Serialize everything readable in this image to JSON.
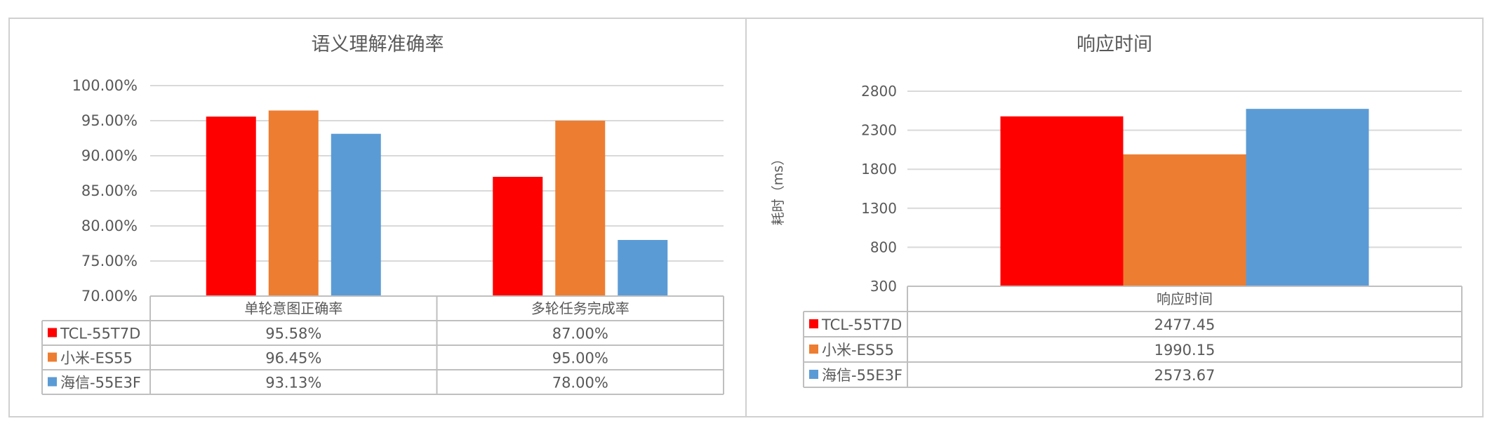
{
  "colors": {
    "series": [
      "#ff0000",
      "#ed7d31",
      "#5b9bd5"
    ],
    "grid": "#d9d9d9",
    "text": "#595959",
    "border": "#bfbfbf"
  },
  "chart_data": [
    {
      "type": "bar",
      "title": "语义理解准确率",
      "xlabel": "",
      "ylabel": "",
      "categories": [
        "单轮意图正确率",
        "多轮任务完成率"
      ],
      "ylim": [
        70,
        100
      ],
      "yticks": [
        "70.00%",
        "75.00%",
        "80.00%",
        "85.00%",
        "90.00%",
        "95.00%",
        "100.00%"
      ],
      "ytick_values": [
        70,
        75,
        80,
        85,
        90,
        95,
        100
      ],
      "grid": true,
      "legend": "data-table",
      "series": [
        {
          "name": "TCL-55T7D",
          "values": [
            95.58,
            87.0
          ],
          "labels": [
            "95.58%",
            "87.00%"
          ]
        },
        {
          "name": "小米-ES55",
          "values": [
            96.45,
            95.0
          ],
          "labels": [
            "96.45%",
            "95.00%"
          ]
        },
        {
          "name": "海信-55E3F",
          "values": [
            93.13,
            78.0
          ],
          "labels": [
            "93.13%",
            "78.00%"
          ]
        }
      ]
    },
    {
      "type": "bar",
      "title": "响应时间",
      "xlabel": "",
      "ylabel": "耗时（ms）",
      "categories": [
        "响应时间"
      ],
      "ylim": [
        300,
        2800
      ],
      "yticks": [
        "300",
        "800",
        "1300",
        "1800",
        "2300",
        "2800"
      ],
      "ytick_values": [
        300,
        800,
        1300,
        1800,
        2300,
        2800
      ],
      "grid": true,
      "legend": "data-table",
      "series": [
        {
          "name": "TCL-55T7D",
          "values": [
            2477.45
          ],
          "labels": [
            "2477.45"
          ]
        },
        {
          "name": "小米-ES55",
          "values": [
            1990.15
          ],
          "labels": [
            "1990.15"
          ]
        },
        {
          "name": "海信-55E3F",
          "values": [
            2573.67
          ],
          "labels": [
            "2573.67"
          ]
        }
      ]
    }
  ]
}
